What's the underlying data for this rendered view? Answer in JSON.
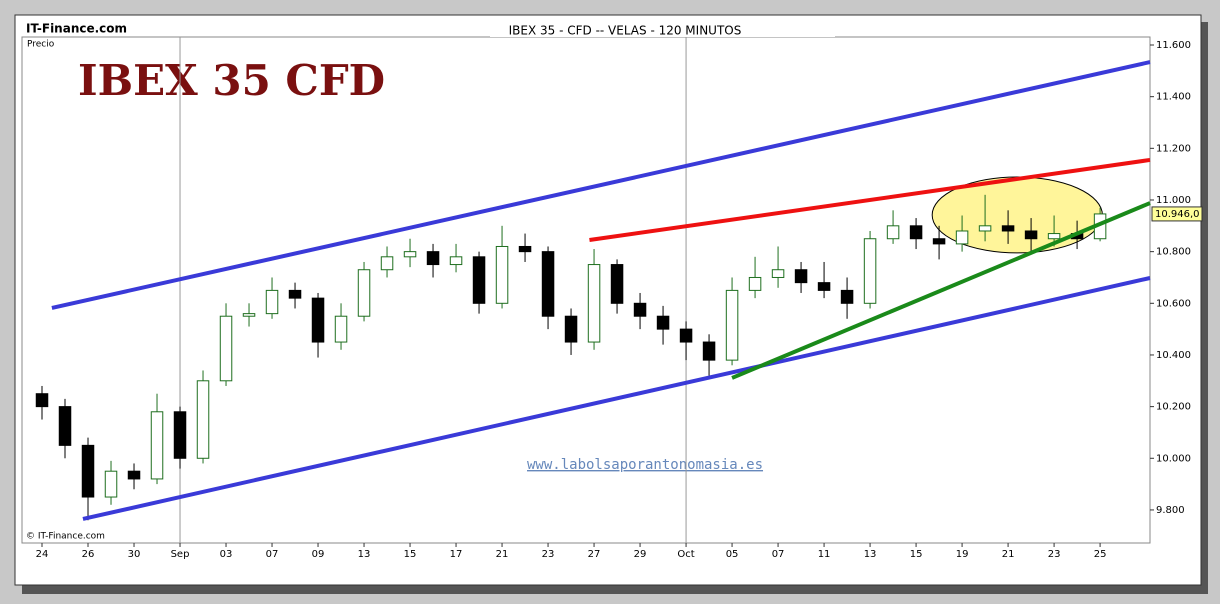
{
  "source": "IT-Finance.com",
  "copyright": "© IT-Finance.com",
  "chart_data": {
    "type": "candlestick",
    "title": "IBEX 35 - CFD -- VELAS - 120 MINUTOS",
    "ylabel": "Precio",
    "annotation_title": "IBEX 35 CFD",
    "watermark": "www.labolsaporantonomasia.es",
    "up_color": "#1e6e1e",
    "down_color": "#000000",
    "x": [
      0,
      1,
      2,
      3,
      4,
      5,
      6,
      7,
      8,
      9,
      10,
      11,
      12,
      13,
      14,
      15,
      16,
      17,
      18,
      19,
      20,
      21,
      22,
      23,
      24,
      25,
      26,
      27,
      28,
      29,
      30,
      31,
      32,
      33,
      34,
      35,
      36,
      37,
      38,
      39,
      40,
      41,
      42,
      43,
      44,
      45,
      46
    ],
    "open": [
      10250,
      10200,
      10050,
      9850,
      9950,
      9920,
      10180,
      10000,
      10300,
      10550,
      10560,
      10650,
      10620,
      10450,
      10550,
      10730,
      10780,
      10800,
      10750,
      10780,
      10600,
      10820,
      10800,
      10550,
      10450,
      10750,
      10600,
      10550,
      10500,
      10450,
      10380,
      10650,
      10700,
      10730,
      10680,
      10650,
      10600,
      10850,
      10900,
      10850,
      10830,
      10880,
      10900,
      10880,
      10850,
      10870,
      10850
    ],
    "high": [
      10280,
      10230,
      10080,
      9990,
      9980,
      10250,
      10200,
      10340,
      10600,
      10600,
      10700,
      10680,
      10640,
      10600,
      10760,
      10820,
      10850,
      10830,
      10830,
      10800,
      10900,
      10870,
      10820,
      10580,
      10810,
      10770,
      10640,
      10590,
      10530,
      10480,
      10700,
      10780,
      10820,
      10760,
      10760,
      10700,
      10880,
      10960,
      10930,
      10900,
      10940,
      11020,
      10960,
      10930,
      10940,
      10920,
      10970
    ],
    "low": [
      10150,
      10000,
      9760,
      9820,
      9880,
      9900,
      9960,
      9980,
      10280,
      10510,
      10540,
      10580,
      10390,
      10420,
      10530,
      10700,
      10740,
      10700,
      10720,
      10560,
      10580,
      10760,
      10500,
      10400,
      10420,
      10560,
      10500,
      10440,
      10380,
      10320,
      10360,
      10620,
      10660,
      10640,
      10620,
      10540,
      10580,
      10830,
      10810,
      10770,
      10800,
      10840,
      10830,
      10800,
      10820,
      10810,
      10840
    ],
    "close": [
      10200,
      10050,
      9850,
      9950,
      9920,
      10180,
      10000,
      10300,
      10550,
      10560,
      10650,
      10620,
      10450,
      10550,
      10730,
      10780,
      10800,
      10750,
      10780,
      10600,
      10820,
      10800,
      10550,
      10450,
      10750,
      10600,
      10550,
      10500,
      10450,
      10380,
      10650,
      10700,
      10730,
      10680,
      10650,
      10600,
      10850,
      10900,
      10850,
      10830,
      10880,
      10900,
      10880,
      10850,
      10870,
      10850,
      10946
    ],
    "xlim": [
      -0.87,
      48.17
    ],
    "ylim": [
      9672,
      11631
    ],
    "xticks": [
      {
        "value": 0,
        "label": "24"
      },
      {
        "value": 2,
        "label": "26"
      },
      {
        "value": 4,
        "label": "30"
      },
      {
        "value": 6,
        "label": "Sep"
      },
      {
        "value": 8,
        "label": "03"
      },
      {
        "value": 10,
        "label": "07"
      },
      {
        "value": 12,
        "label": "09"
      },
      {
        "value": 14,
        "label": "13"
      },
      {
        "value": 16,
        "label": "15"
      },
      {
        "value": 18,
        "label": "17"
      },
      {
        "value": 20,
        "label": "21"
      },
      {
        "value": 22,
        "label": "23"
      },
      {
        "value": 24,
        "label": "27"
      },
      {
        "value": 26,
        "label": "29"
      },
      {
        "value": 28,
        "label": "Oct"
      },
      {
        "value": 30,
        "label": "05"
      },
      {
        "value": 32,
        "label": "07"
      },
      {
        "value": 34,
        "label": "11"
      },
      {
        "value": 36,
        "label": "13"
      },
      {
        "value": 38,
        "label": "15"
      },
      {
        "value": 40,
        "label": "19"
      },
      {
        "value": 42,
        "label": "21"
      },
      {
        "value": 44,
        "label": "23"
      },
      {
        "value": 46,
        "label": "25"
      }
    ],
    "yticks": [
      {
        "value": 9800,
        "label": "9.800"
      },
      {
        "value": 10000,
        "label": "10.000"
      },
      {
        "value": 10200,
        "label": "10.200"
      },
      {
        "value": 10400,
        "label": "10.400"
      },
      {
        "value": 10600,
        "label": "10.600"
      },
      {
        "value": 10800,
        "label": "10.800"
      },
      {
        "value": 11000,
        "label": "11.000"
      },
      {
        "value": 11200,
        "label": "11.200"
      },
      {
        "value": 11400,
        "label": "11.400"
      },
      {
        "value": 11600,
        "label": "11.600"
      }
    ],
    "vlines": [
      6,
      28
    ],
    "last_price": {
      "value": 10946,
      "label": "10.946,0"
    },
    "lines": [
      {
        "color": "#3a3ad8",
        "x": [
          0.43,
          48.17
        ],
        "y": [
          10582,
          11534
        ]
      },
      {
        "color": "#3a3ad8",
        "x": [
          1.78,
          48.17
        ],
        "y": [
          9765,
          10698
        ]
      },
      {
        "color": "#ee1111",
        "x": [
          23.8,
          48.17
        ],
        "y": [
          10845,
          11155
        ]
      },
      {
        "color": "#1a8a1a",
        "x": [
          30.0,
          48.17
        ],
        "y": [
          10311,
          10988
        ]
      }
    ],
    "highlight": {
      "x": 42.4,
      "y": 10942,
      "rx": 3.7,
      "ry": 147,
      "color": "#fff59a"
    }
  }
}
